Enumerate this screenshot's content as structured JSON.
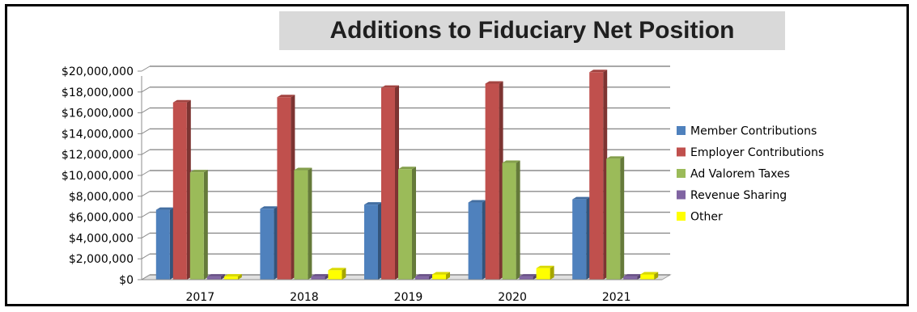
{
  "chart_data": {
    "type": "bar",
    "title": "Additions to Fiduciary Net Position",
    "categories": [
      "2017",
      "2018",
      "2019",
      "2020",
      "2021"
    ],
    "series": [
      {
        "name": "Member Contributions",
        "color": "#4f81bd",
        "values": [
          6700000,
          6800000,
          7200000,
          7400000,
          7700000
        ]
      },
      {
        "name": "Employer Contributions",
        "color": "#c0504d",
        "values": [
          17000000,
          17500000,
          18400000,
          18800000,
          19900000
        ]
      },
      {
        "name": "Ad Valorem Taxes",
        "color": "#9bbb59",
        "values": [
          10300000,
          10500000,
          10600000,
          11200000,
          11600000
        ]
      },
      {
        "name": "Revenue Sharing",
        "color": "#8064a2",
        "values": [
          300000,
          300000,
          300000,
          300000,
          300000
        ]
      },
      {
        "name": "Other",
        "color": "#ffff00",
        "values": [
          300000,
          900000,
          500000,
          1100000,
          500000
        ]
      }
    ],
    "yticks": [
      "$0",
      "$2,000,000",
      "$4,000,000",
      "$6,000,000",
      "$8,000,000",
      "$10,000,000",
      "$12,000,000",
      "$14,000,000",
      "$16,000,000",
      "$18,000,000",
      "$20,000,000"
    ],
    "ylim": [
      0,
      20000000
    ],
    "grid": true,
    "legend_position": "right"
  }
}
